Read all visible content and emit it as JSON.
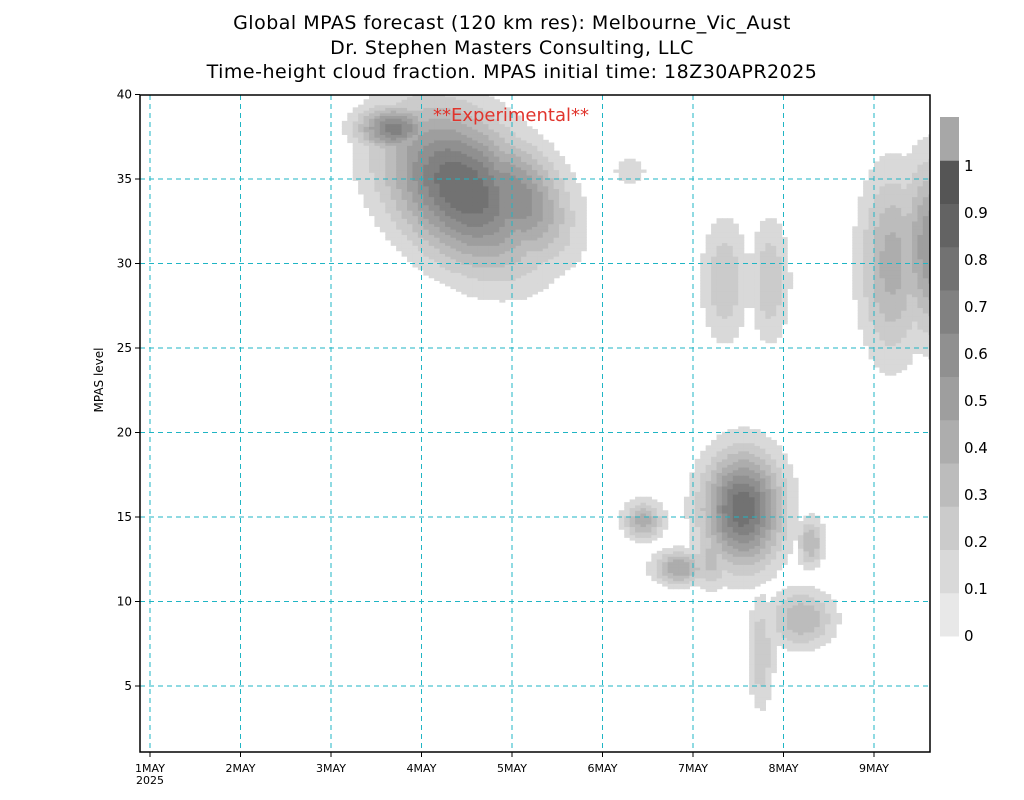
{
  "header": {
    "title_line1": "Global MPAS forecast (120 km res): Melbourne_Vic_Aust",
    "title_line2": "Dr. Stephen Masters Consulting, LLC",
    "title_line3": "Time-height cloud fraction.   MPAS initial time: 18Z30APR2025"
  },
  "colors": {
    "grid": "#1fb5c4",
    "watermark": "#e0342c",
    "frame": "#000000"
  },
  "chart_data": {
    "type": "heatmap",
    "watermark": "**Experimental**",
    "ylabel": "MPAS level",
    "xlabel": "",
    "x_range_days": [
      "2025-05-01T00Z",
      "2025-05-09T18Z"
    ],
    "x_ticks": [
      {
        "label": "1MAY",
        "sublabel": "2025",
        "day": 0
      },
      {
        "label": "2MAY",
        "day": 1
      },
      {
        "label": "3MAY",
        "day": 2
      },
      {
        "label": "4MAY",
        "day": 3
      },
      {
        "label": "5MAY",
        "day": 4
      },
      {
        "label": "6MAY",
        "day": 5
      },
      {
        "label": "7MAY",
        "day": 6
      },
      {
        "label": "8MAY",
        "day": 7
      },
      {
        "label": "9MAY",
        "day": 8
      }
    ],
    "ylim": [
      1,
      40
    ],
    "y_ticks": [
      5,
      10,
      15,
      20,
      25,
      30,
      35,
      40
    ],
    "grid": true,
    "colorbar": {
      "labels": [
        "0",
        "0.1",
        "0.2",
        "0.3",
        "0.4",
        "0.5",
        "0.6",
        "0.7",
        "0.8",
        "0.9",
        "1"
      ],
      "colors": [
        "#e8e8e8",
        "#d9d9d9",
        "#cbcbcb",
        "#bcbcbc",
        "#adadad",
        "#9e9e9e",
        "#909090",
        "#818181",
        "#727272",
        "#636363",
        "#555555",
        "#a7a7a7"
      ]
    },
    "cloud_features": [
      {
        "day": 3.45,
        "level": 34.5,
        "spread_days": 0.55,
        "spread_levels": 3.2,
        "tilt": 0.55,
        "fraction": 0.9
      },
      {
        "day": 2.7,
        "level": 38.0,
        "spread_days": 0.28,
        "spread_levels": 0.9,
        "tilt": 0.0,
        "fraction": 0.75
      },
      {
        "day": 4.0,
        "level": 34.0,
        "spread_days": 0.4,
        "spread_levels": 2.5,
        "tilt": 0.5,
        "fraction": 0.7
      },
      {
        "day": 5.3,
        "level": 35.5,
        "spread_days": 0.25,
        "spread_levels": 1.2,
        "tilt": 0.0,
        "fraction": 0.12
      },
      {
        "day": 4.65,
        "level": 35.0,
        "spread_days": 0.12,
        "spread_levels": 0.7,
        "tilt": 0.0,
        "fraction": 0.1
      },
      {
        "day": 6.35,
        "level": 29.0,
        "spread_days": 0.18,
        "spread_levels": 2.5,
        "tilt": 0.0,
        "fraction": 0.3
      },
      {
        "day": 6.85,
        "level": 29.0,
        "spread_days": 0.15,
        "spread_levels": 2.5,
        "tilt": 0.0,
        "fraction": 0.3
      },
      {
        "day": 6.55,
        "level": 15.5,
        "spread_days": 0.3,
        "spread_levels": 2.3,
        "tilt": 0.0,
        "fraction": 0.88
      },
      {
        "day": 5.45,
        "level": 14.8,
        "spread_days": 0.15,
        "spread_levels": 0.8,
        "tilt": 0.0,
        "fraction": 0.45
      },
      {
        "day": 5.85,
        "level": 12.0,
        "spread_days": 0.2,
        "spread_levels": 0.7,
        "tilt": 0.0,
        "fraction": 0.5
      },
      {
        "day": 6.2,
        "level": 12.5,
        "spread_days": 0.15,
        "spread_levels": 1.2,
        "tilt": 0.0,
        "fraction": 0.35
      },
      {
        "day": 7.2,
        "level": 9.0,
        "spread_days": 0.25,
        "spread_levels": 1.2,
        "tilt": 0.0,
        "fraction": 0.4
      },
      {
        "day": 6.75,
        "level": 7.0,
        "spread_days": 0.1,
        "spread_levels": 2.3,
        "tilt": 0.0,
        "fraction": 0.3
      },
      {
        "day": 7.3,
        "level": 13.5,
        "spread_days": 0.1,
        "spread_levels": 1.0,
        "tilt": 0.0,
        "fraction": 0.4
      },
      {
        "day": 8.2,
        "level": 30.0,
        "spread_days": 0.25,
        "spread_levels": 3.8,
        "tilt": 0.0,
        "fraction": 0.45
      },
      {
        "day": 8.65,
        "level": 31.0,
        "spread_days": 0.25,
        "spread_levels": 3.5,
        "tilt": 0.0,
        "fraction": 0.6
      }
    ]
  }
}
